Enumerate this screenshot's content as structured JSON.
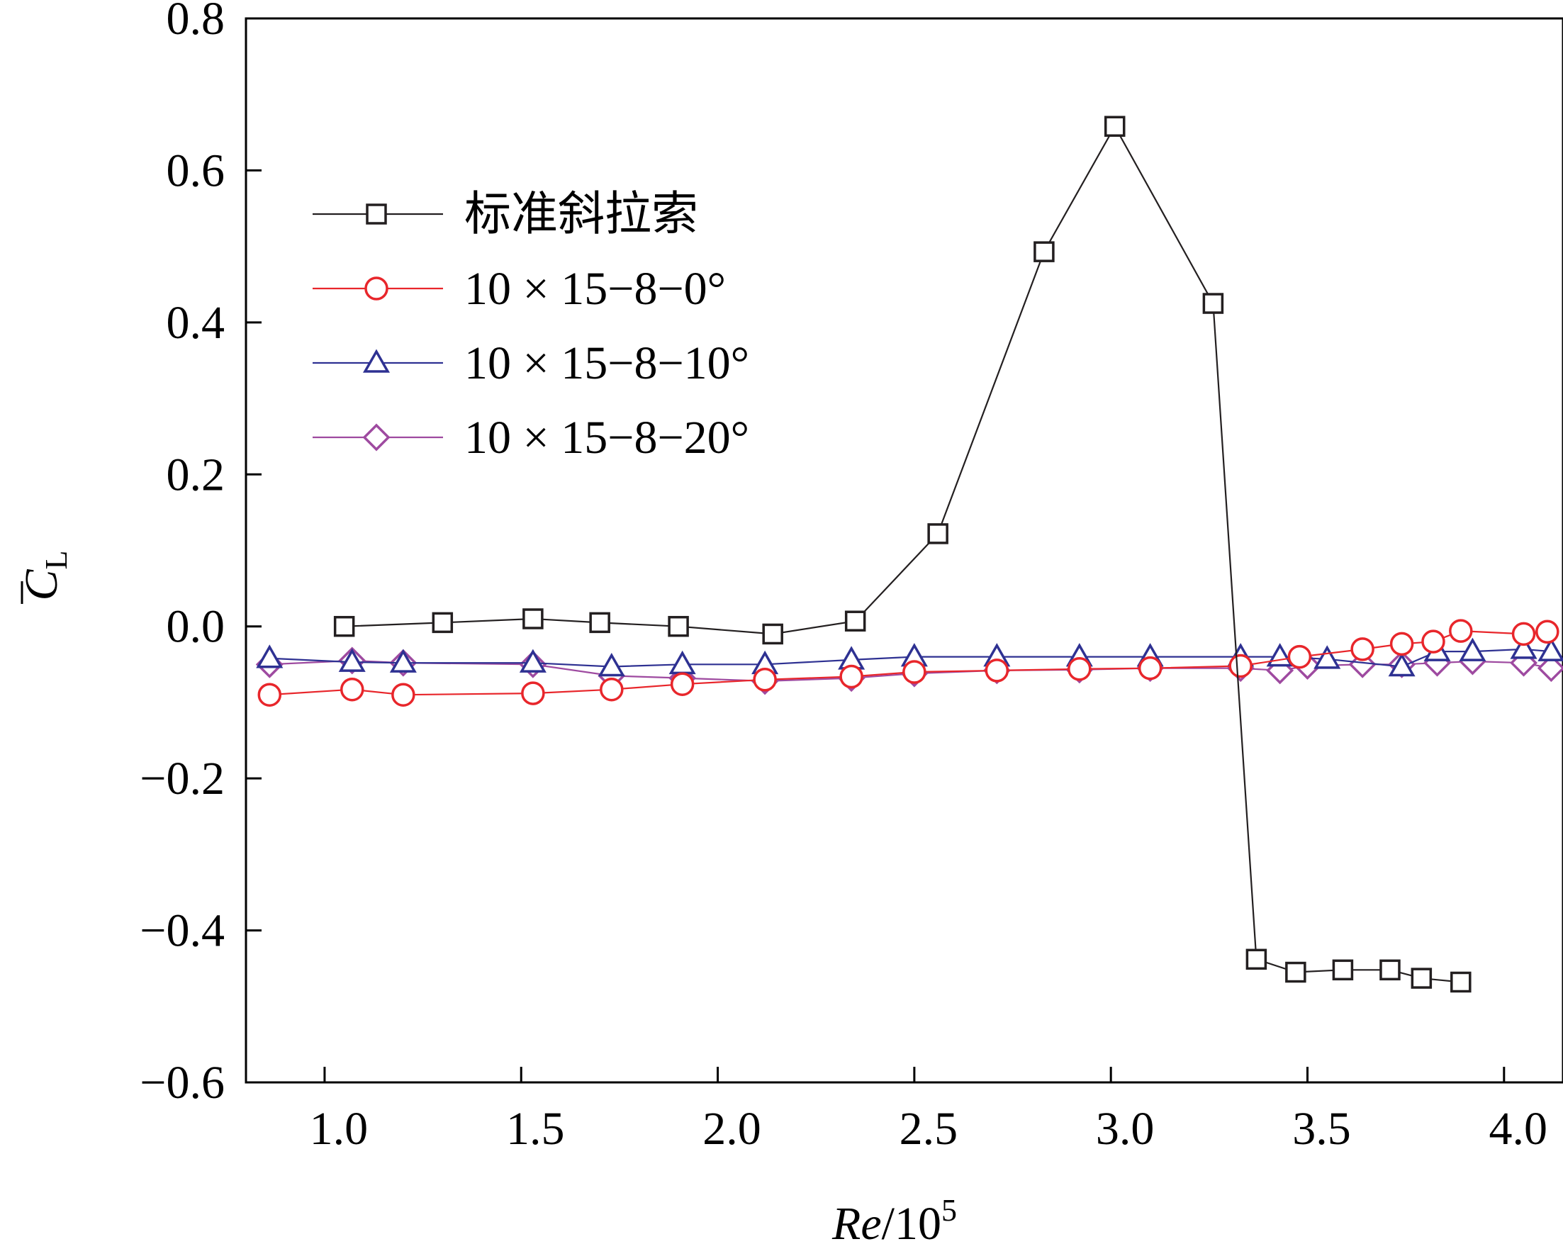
{
  "chart_data": {
    "type": "line",
    "xlabel": "Re/10",
    "xlabel_sup": "5",
    "ylabel_main": "C",
    "ylabel_sub": "L",
    "xlim": [
      0.8,
      4.15
    ],
    "ylim": [
      -0.6,
      0.8
    ],
    "xticks": [
      1.0,
      1.5,
      2.0,
      2.5,
      3.0,
      3.5,
      4.0
    ],
    "xtick_labels": [
      "1.0",
      "1.5",
      "2.0",
      "2.5",
      "3.0",
      "3.5",
      "4.0"
    ],
    "yticks": [
      -0.6,
      -0.4,
      -0.2,
      0.0,
      0.2,
      0.4,
      0.6,
      0.8
    ],
    "ytick_labels": [
      "−0.6",
      "−0.4",
      "−0.2",
      "0.0",
      "0.2",
      "0.4",
      "0.6",
      "0.8"
    ],
    "legend_position": "upper-left",
    "series": [
      {
        "name": "标准斜拉索",
        "marker": "square",
        "color": "#231f20",
        "points": [
          [
            1.05,
            0.0
          ],
          [
            1.3,
            0.005
          ],
          [
            1.53,
            0.01
          ],
          [
            1.7,
            0.005
          ],
          [
            1.9,
            0.0
          ],
          [
            2.14,
            -0.01
          ],
          [
            2.35,
            0.007
          ],
          [
            2.56,
            0.122
          ],
          [
            2.83,
            0.493
          ],
          [
            3.01,
            0.658
          ],
          [
            3.26,
            0.425
          ],
          [
            3.37,
            -0.438
          ],
          [
            3.47,
            -0.455
          ],
          [
            3.59,
            -0.452
          ],
          [
            3.71,
            -0.452
          ],
          [
            3.79,
            -0.463
          ],
          [
            3.89,
            -0.468
          ]
        ]
      },
      {
        "name": "10 × 15−8−0°",
        "marker": "circle",
        "color": "#e8262b",
        "points": [
          [
            0.86,
            -0.09
          ],
          [
            1.07,
            -0.083
          ],
          [
            1.2,
            -0.09
          ],
          [
            1.53,
            -0.088
          ],
          [
            1.73,
            -0.083
          ],
          [
            1.91,
            -0.076
          ],
          [
            2.12,
            -0.07
          ],
          [
            2.34,
            -0.066
          ],
          [
            2.5,
            -0.06
          ],
          [
            2.71,
            -0.058
          ],
          [
            2.92,
            -0.056
          ],
          [
            3.1,
            -0.055
          ],
          [
            3.33,
            -0.052
          ],
          [
            3.48,
            -0.04
          ],
          [
            3.64,
            -0.03
          ],
          [
            3.74,
            -0.023
          ],
          [
            3.82,
            -0.02
          ],
          [
            3.89,
            -0.006
          ],
          [
            4.05,
            -0.01
          ],
          [
            4.11,
            -0.007
          ]
        ]
      },
      {
        "name": "10 × 15−8−10°",
        "marker": "triangle",
        "color": "#2e3192",
        "points": [
          [
            0.86,
            -0.042
          ],
          [
            1.07,
            -0.047
          ],
          [
            1.2,
            -0.048
          ],
          [
            1.53,
            -0.048
          ],
          [
            1.73,
            -0.053
          ],
          [
            1.91,
            -0.05
          ],
          [
            2.12,
            -0.05
          ],
          [
            2.34,
            -0.044
          ],
          [
            2.5,
            -0.04
          ],
          [
            2.71,
            -0.04
          ],
          [
            2.92,
            -0.04
          ],
          [
            3.1,
            -0.04
          ],
          [
            3.33,
            -0.04
          ],
          [
            3.43,
            -0.04
          ],
          [
            3.55,
            -0.043
          ],
          [
            3.74,
            -0.053
          ],
          [
            3.83,
            -0.033
          ],
          [
            3.92,
            -0.033
          ],
          [
            4.05,
            -0.03
          ],
          [
            4.12,
            -0.033
          ]
        ]
      },
      {
        "name": "10 × 15−8−20°",
        "marker": "diamond",
        "color": "#9e4aa0",
        "points": [
          [
            0.86,
            -0.05
          ],
          [
            1.07,
            -0.045
          ],
          [
            1.2,
            -0.048
          ],
          [
            1.53,
            -0.05
          ],
          [
            1.73,
            -0.065
          ],
          [
            1.91,
            -0.068
          ],
          [
            2.12,
            -0.072
          ],
          [
            2.34,
            -0.068
          ],
          [
            2.5,
            -0.062
          ],
          [
            2.71,
            -0.058
          ],
          [
            2.92,
            -0.057
          ],
          [
            3.1,
            -0.055
          ],
          [
            3.33,
            -0.055
          ],
          [
            3.43,
            -0.058
          ],
          [
            3.5,
            -0.052
          ],
          [
            3.64,
            -0.05
          ],
          [
            3.74,
            -0.05
          ],
          [
            3.83,
            -0.048
          ],
          [
            3.92,
            -0.046
          ],
          [
            4.05,
            -0.048
          ],
          [
            4.12,
            -0.055
          ]
        ]
      }
    ]
  }
}
